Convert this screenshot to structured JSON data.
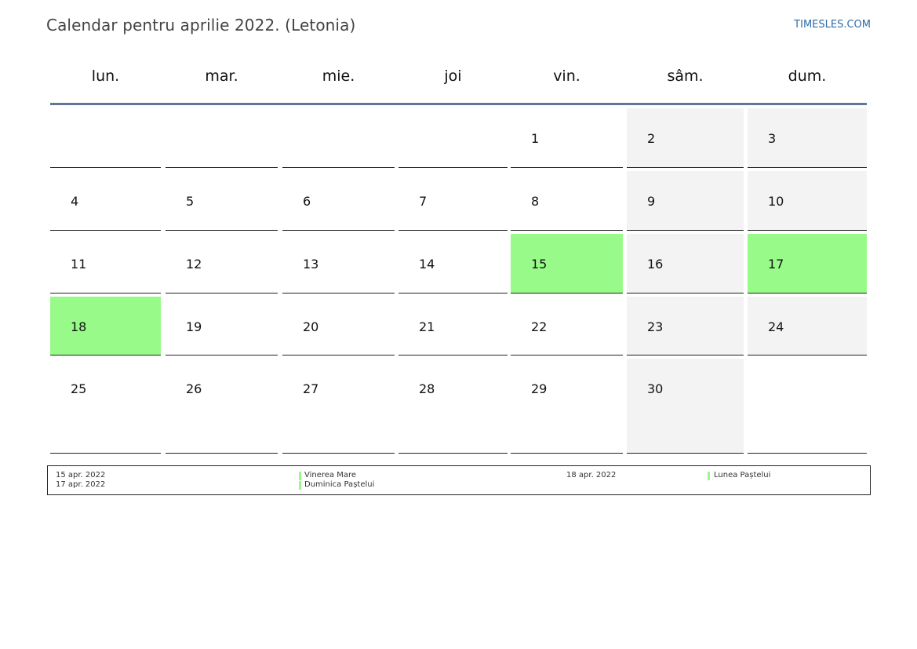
{
  "header": {
    "title": "Calendar pentru aprilie 2022. (Letonia)",
    "brand": "TIMESLES.COM"
  },
  "days": [
    "lun.",
    "mar.",
    "mie.",
    "joi",
    "vin.",
    "sâm.",
    "dum."
  ],
  "weeks": [
    [
      "",
      "",
      "",
      "",
      "1",
      "2",
      "3"
    ],
    [
      "4",
      "5",
      "6",
      "7",
      "8",
      "9",
      "10"
    ],
    [
      "11",
      "12",
      "13",
      "14",
      "15",
      "16",
      "17"
    ],
    [
      "18",
      "19",
      "20",
      "21",
      "22",
      "23",
      "24"
    ],
    [
      "25",
      "26",
      "27",
      "28",
      "29",
      "30",
      ""
    ]
  ],
  "holidays": [
    "15",
    "17",
    "18"
  ],
  "colors": {
    "holiday": "#98fa88",
    "weekend": "#f3f3f3",
    "header_line": "#5f7896",
    "brand": "#2f6ca6"
  },
  "legend": [
    {
      "date": "15 apr. 2022",
      "name": "Vinerea Mare"
    },
    {
      "date": "17 apr. 2022",
      "name": "Duminica Paștelui"
    },
    {
      "date": "18 apr. 2022",
      "name": "Lunea Paștelui"
    }
  ]
}
